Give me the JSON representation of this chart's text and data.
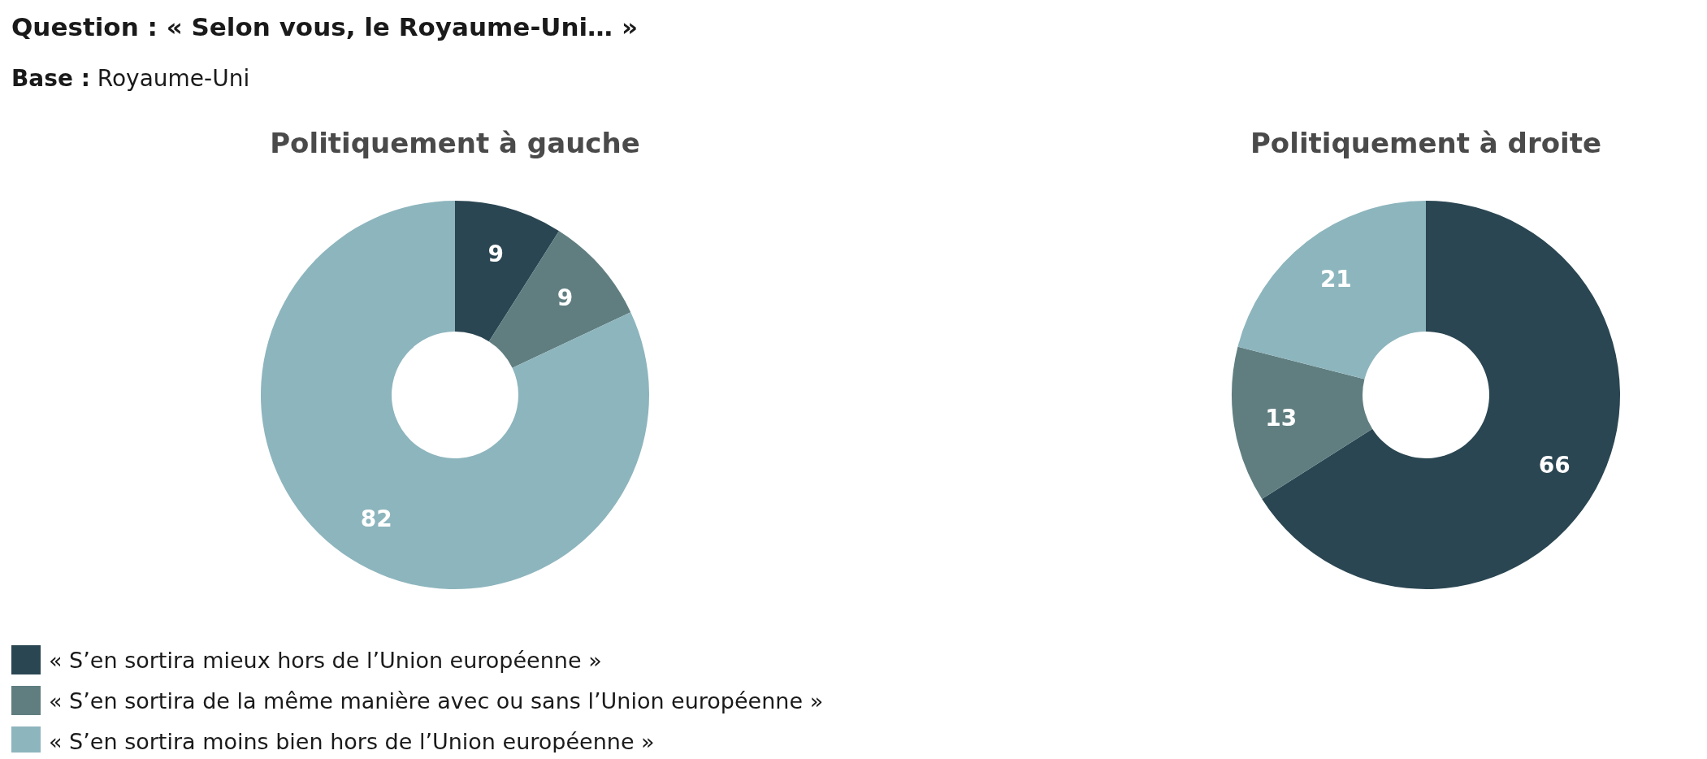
{
  "chart_data": [
    {
      "type": "donut",
      "title": "Politiquement à gauche",
      "annotations": [
        "Question : « Selon vous, le Royaume-Uni… »",
        "Base : Royaume-Uni"
      ],
      "categories": [
        "« S’en sortira mieux hors de l’Union européenne »",
        "« S’en sortira de la même manière avec ou sans l’Union européenne »",
        "« S’en sortira moins bien hors de l’Union européenne »"
      ],
      "values": [
        9,
        9,
        82
      ],
      "colors": [
        "#2a4652",
        "#607e80",
        "#8db5bd"
      ],
      "data_labels": true,
      "legend": "bottom left"
    },
    {
      "type": "donut",
      "title": "Politiquement à droite",
      "categories": [
        null,
        null,
        null
      ],
      "values": [
        66,
        13,
        21
      ],
      "colors": [
        "#2a4652",
        "#607e80",
        "#8db5bd"
      ],
      "data_labels": true
    }
  ]
}
